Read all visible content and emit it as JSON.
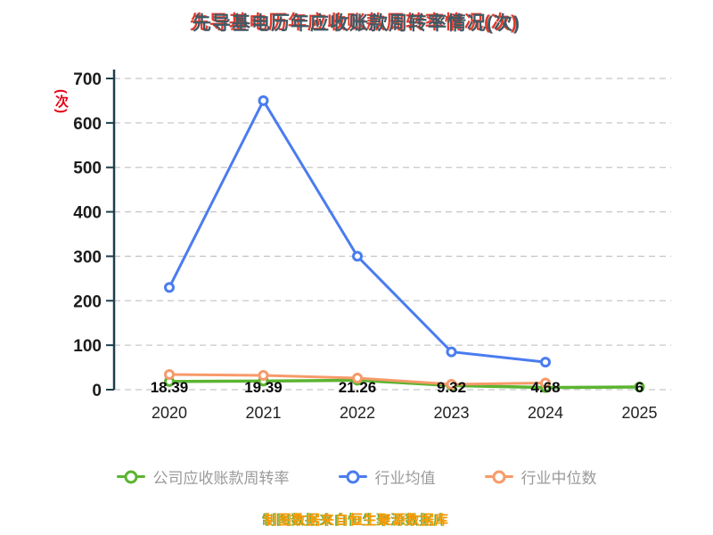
{
  "title": "先导基电历年应收账款周转率情况(次)",
  "footer": "制图数据来自恒生聚源数据库",
  "chart_data": {
    "type": "line",
    "title": "先导基电历年应收账款周转率情况(次)",
    "ylabel": "(次)",
    "ylim": [
      0,
      700
    ],
    "ytick_step": 100,
    "grid": "dashed-horizontal",
    "legend_position": "bottom",
    "categories": [
      "2020",
      "2021",
      "2022",
      "2023",
      "2024",
      "2025"
    ],
    "series": [
      {
        "name": "公司应收账款周转率",
        "color": "#5bb431",
        "values": [
          18.39,
          19.39,
          21.26,
          9.32,
          4.68,
          6
        ],
        "show_labels": true
      },
      {
        "name": "行业均值",
        "color": "#4a7cf0",
        "values": [
          230,
          650,
          300,
          85,
          62,
          null
        ],
        "show_labels": false
      },
      {
        "name": "行业中位数",
        "color": "#f79a6a",
        "values": [
          34,
          32,
          26,
          12,
          15,
          null
        ],
        "show_labels": false
      }
    ]
  }
}
